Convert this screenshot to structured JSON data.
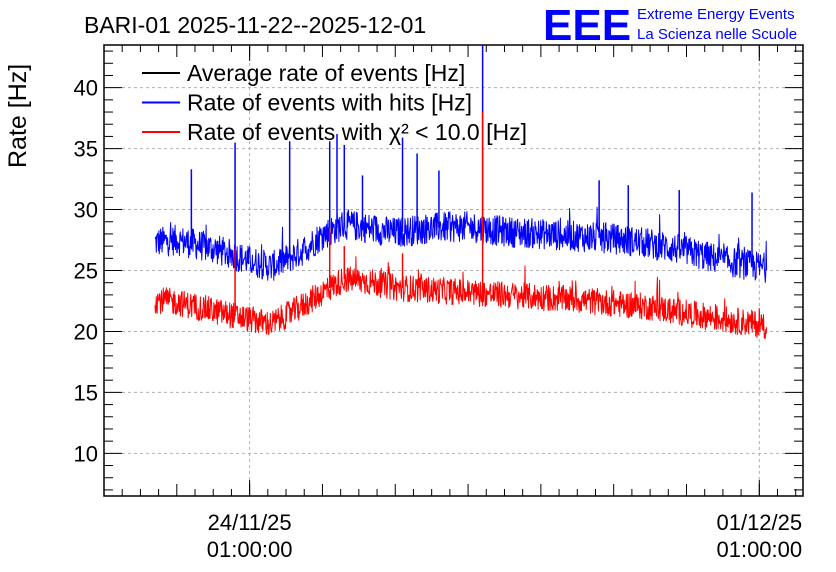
{
  "chart_data": {
    "type": "line",
    "title": "BARI-01 2025-11-22--2025-12-01",
    "xlabel": "",
    "ylabel": "Rate [Hz]",
    "ylim": [
      6.5,
      43.5
    ],
    "yticks": [
      10,
      15,
      20,
      25,
      30,
      35,
      40
    ],
    "xlim": [
      0.0,
      9.6
    ],
    "x_tick_labels": [
      {
        "x": 2.0,
        "date": "24/11/25",
        "time": "01:00:00"
      },
      {
        "x": 9.0,
        "date": "01/12/25",
        "time": "01:00:00"
      }
    ],
    "grid": true,
    "legend_position": "top-left",
    "x_unit": "days since 2025-11-22 01:00",
    "series": [
      {
        "name": "Average rate of events [Hz]",
        "color": "#000000",
        "x": [
          0.7,
          1.5,
          2.0,
          2.3,
          3.0,
          3.5,
          4.0,
          5.0,
          6.0,
          7.0,
          8.0,
          9.1
        ],
        "values": [
          null,
          null,
          null,
          null,
          null,
          null,
          null,
          null,
          null,
          null,
          null,
          null
        ]
      },
      {
        "name": "Rate of events with hits [Hz]",
        "color": "#0000ff",
        "x": [
          0.7,
          1.0,
          1.5,
          2.0,
          2.3,
          2.7,
          3.0,
          3.3,
          3.7,
          4.0,
          4.5,
          5.0,
          5.5,
          6.0,
          6.5,
          7.0,
          7.5,
          8.0,
          8.5,
          9.1
        ],
        "values": [
          27.3,
          27.5,
          26.8,
          25.8,
          25.3,
          26.5,
          27.9,
          28.8,
          28.4,
          28.1,
          28.5,
          28.6,
          28.2,
          28.0,
          27.8,
          27.6,
          27.2,
          26.6,
          25.8,
          25.2
        ],
        "spikes": [
          {
            "x": 1.2,
            "y": 33.3
          },
          {
            "x": 1.8,
            "y": 35.5
          },
          {
            "x": 2.55,
            "y": 35.6
          },
          {
            "x": 3.1,
            "y": 35.6
          },
          {
            "x": 3.2,
            "y": 36.2
          },
          {
            "x": 3.3,
            "y": 35.3
          },
          {
            "x": 3.55,
            "y": 32.8
          },
          {
            "x": 4.1,
            "y": 35.9
          },
          {
            "x": 4.3,
            "y": 34.6
          },
          {
            "x": 4.6,
            "y": 33.2
          },
          {
            "x": 5.2,
            "y": 43.5
          },
          {
            "x": 6.8,
            "y": 32.4
          },
          {
            "x": 7.2,
            "y": 32.0
          },
          {
            "x": 7.9,
            "y": 31.6
          },
          {
            "x": 8.9,
            "y": 31.4
          }
        ]
      },
      {
        "name": "Rate of events with χ² < 10.0 [Hz]",
        "color": "#ff0000",
        "x": [
          0.7,
          1.0,
          1.5,
          2.0,
          2.3,
          2.7,
          3.0,
          3.3,
          3.7,
          4.0,
          4.5,
          5.0,
          5.5,
          6.0,
          6.5,
          7.0,
          7.5,
          8.0,
          8.5,
          9.1
        ],
        "values": [
          22.6,
          22.4,
          21.7,
          21.0,
          20.6,
          22.0,
          23.2,
          24.3,
          24.0,
          23.6,
          23.4,
          23.2,
          23.0,
          22.8,
          22.6,
          22.3,
          22.0,
          21.5,
          21.0,
          20.5
        ],
        "spikes": [
          {
            "x": 1.8,
            "y": 26.8
          },
          {
            "x": 3.1,
            "y": 28.5
          },
          {
            "x": 3.3,
            "y": 27.0
          },
          {
            "x": 5.2,
            "y": 38.0
          },
          {
            "x": 4.1,
            "y": 26.4
          }
        ]
      }
    ]
  },
  "logo": {
    "mark": "EEE",
    "line1": "Extreme Energy Events",
    "line2": "La Scienza nelle Scuole",
    "color": "#0000ff"
  }
}
